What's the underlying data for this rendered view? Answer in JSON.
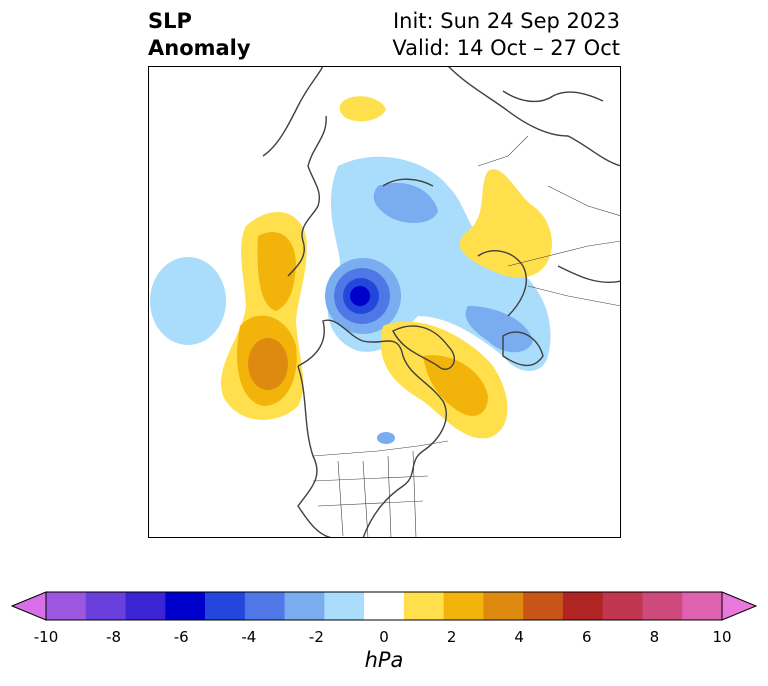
{
  "title": {
    "left_line1": "SLP",
    "left_line2": "Anomaly",
    "right_line1": "Init: Sun 24 Sep 2023",
    "right_line2": "Valid: 14 Oct – 27 Oct"
  },
  "colorbar": {
    "label": "hPa",
    "ticks": [
      "-10",
      "-8",
      "-6",
      "-4",
      "-2",
      "0",
      "2",
      "4",
      "6",
      "8",
      "10"
    ],
    "colors": [
      "#d66fe8",
      "#9c56e0",
      "#6b3fdc",
      "#3a24d4",
      "#0000cd",
      "#2346dc",
      "#4f78e6",
      "#79adf0",
      "#aadcfb",
      "#ffffff",
      "#ffe04c",
      "#f2b40a",
      "#de8a10",
      "#c85418",
      "#b02424",
      "#c03650",
      "#cf4a7c",
      "#de62b0",
      "#ea78dc"
    ]
  },
  "colors": {
    "ocean_bg": "#ffffff",
    "coast": "#404040",
    "border": "#000000"
  }
}
